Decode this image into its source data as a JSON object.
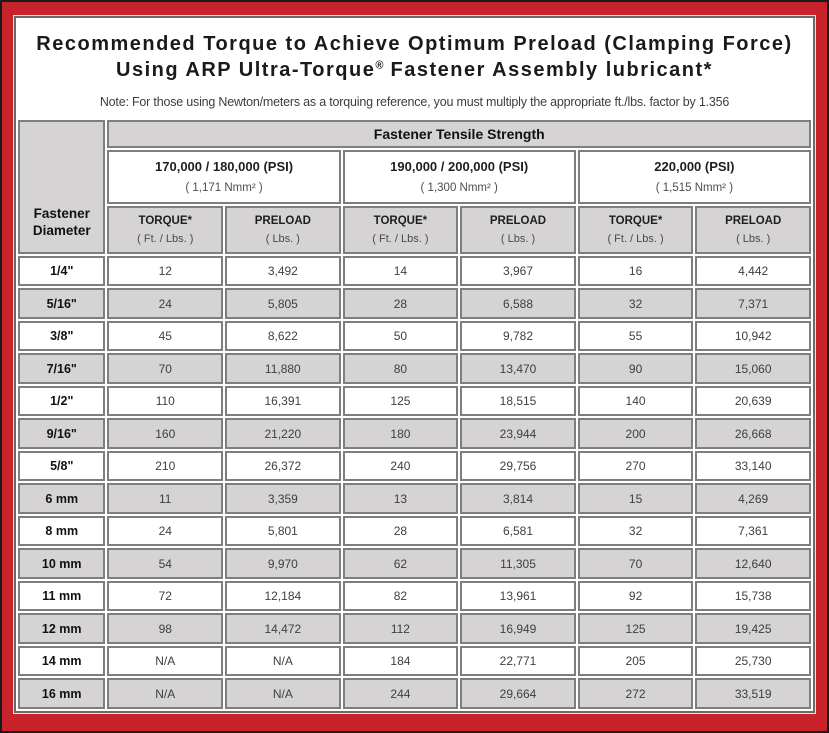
{
  "colors": {
    "frame_red": "#c8232b",
    "frame_edge": "#1a1a1a",
    "cell_gray": "#d5d3d3",
    "cell_border_gray": "#7e7e7e",
    "content_box_border": "#6a6a6a",
    "title_text": "#1a1a1a",
    "value_text": "#3f3f3f"
  },
  "header": {
    "title_line1": "Recommended Torque to Achieve Optimum Preload (Clamping Force)",
    "title_line2_pre": "Using ARP Ultra-Torque",
    "title_line2_sup": "®",
    "title_line2_post": " Fastener Assembly lubricant*",
    "note": "Note: For those using Newton/meters as a torquing reference, you must multiply the appropriate ft./lbs. factor by 1.356"
  },
  "table": {
    "corner_label": "Fastener Diameter",
    "tensile_header": "Fastener Tensile Strength",
    "groups": [
      {
        "psi": "170,000 / 180,000 (PSI)",
        "nmm": "( 1,171 Nmm² )"
      },
      {
        "psi": "190,000 / 200,000 (PSI)",
        "nmm": "( 1,300 Nmm² )"
      },
      {
        "psi": "220,000 (PSI)",
        "nmm": "( 1,515 Nmm² )"
      }
    ],
    "subheaders": {
      "torque_label": "TORQUE*",
      "torque_unit": "( Ft. / Lbs. )",
      "preload_label": "PRELOAD",
      "preload_unit": "( Lbs. )"
    },
    "rows": [
      [
        "1/4\"",
        "12",
        "3,492",
        "14",
        "3,967",
        "16",
        "4,442"
      ],
      [
        "5/16\"",
        "24",
        "5,805",
        "28",
        "6,588",
        "32",
        "7,371"
      ],
      [
        "3/8\"",
        "45",
        "8,622",
        "50",
        "9,782",
        "55",
        "10,942"
      ],
      [
        "7/16\"",
        "70",
        "11,880",
        "80",
        "13,470",
        "90",
        "15,060"
      ],
      [
        "1/2\"",
        "110",
        "16,391",
        "125",
        "18,515",
        "140",
        "20,639"
      ],
      [
        "9/16\"",
        "160",
        "21,220",
        "180",
        "23,944",
        "200",
        "26,668"
      ],
      [
        "5/8\"",
        "210",
        "26,372",
        "240",
        "29,756",
        "270",
        "33,140"
      ],
      [
        "6 mm",
        "11",
        "3,359",
        "13",
        "3,814",
        "15",
        "4,269"
      ],
      [
        "8 mm",
        "24",
        "5,801",
        "28",
        "6,581",
        "32",
        "7,361"
      ],
      [
        "10 mm",
        "54",
        "9,970",
        "62",
        "11,305",
        "70",
        "12,640"
      ],
      [
        "11 mm",
        "72",
        "12,184",
        "82",
        "13,961",
        "92",
        "15,738"
      ],
      [
        "12 mm",
        "98",
        "14,472",
        "112",
        "16,949",
        "125",
        "19,425"
      ],
      [
        "14 mm",
        "N/A",
        "N/A",
        "184",
        "22,771",
        "205",
        "25,730"
      ],
      [
        "16 mm",
        "N/A",
        "N/A",
        "244",
        "29,664",
        "272",
        "33,519"
      ]
    ]
  }
}
